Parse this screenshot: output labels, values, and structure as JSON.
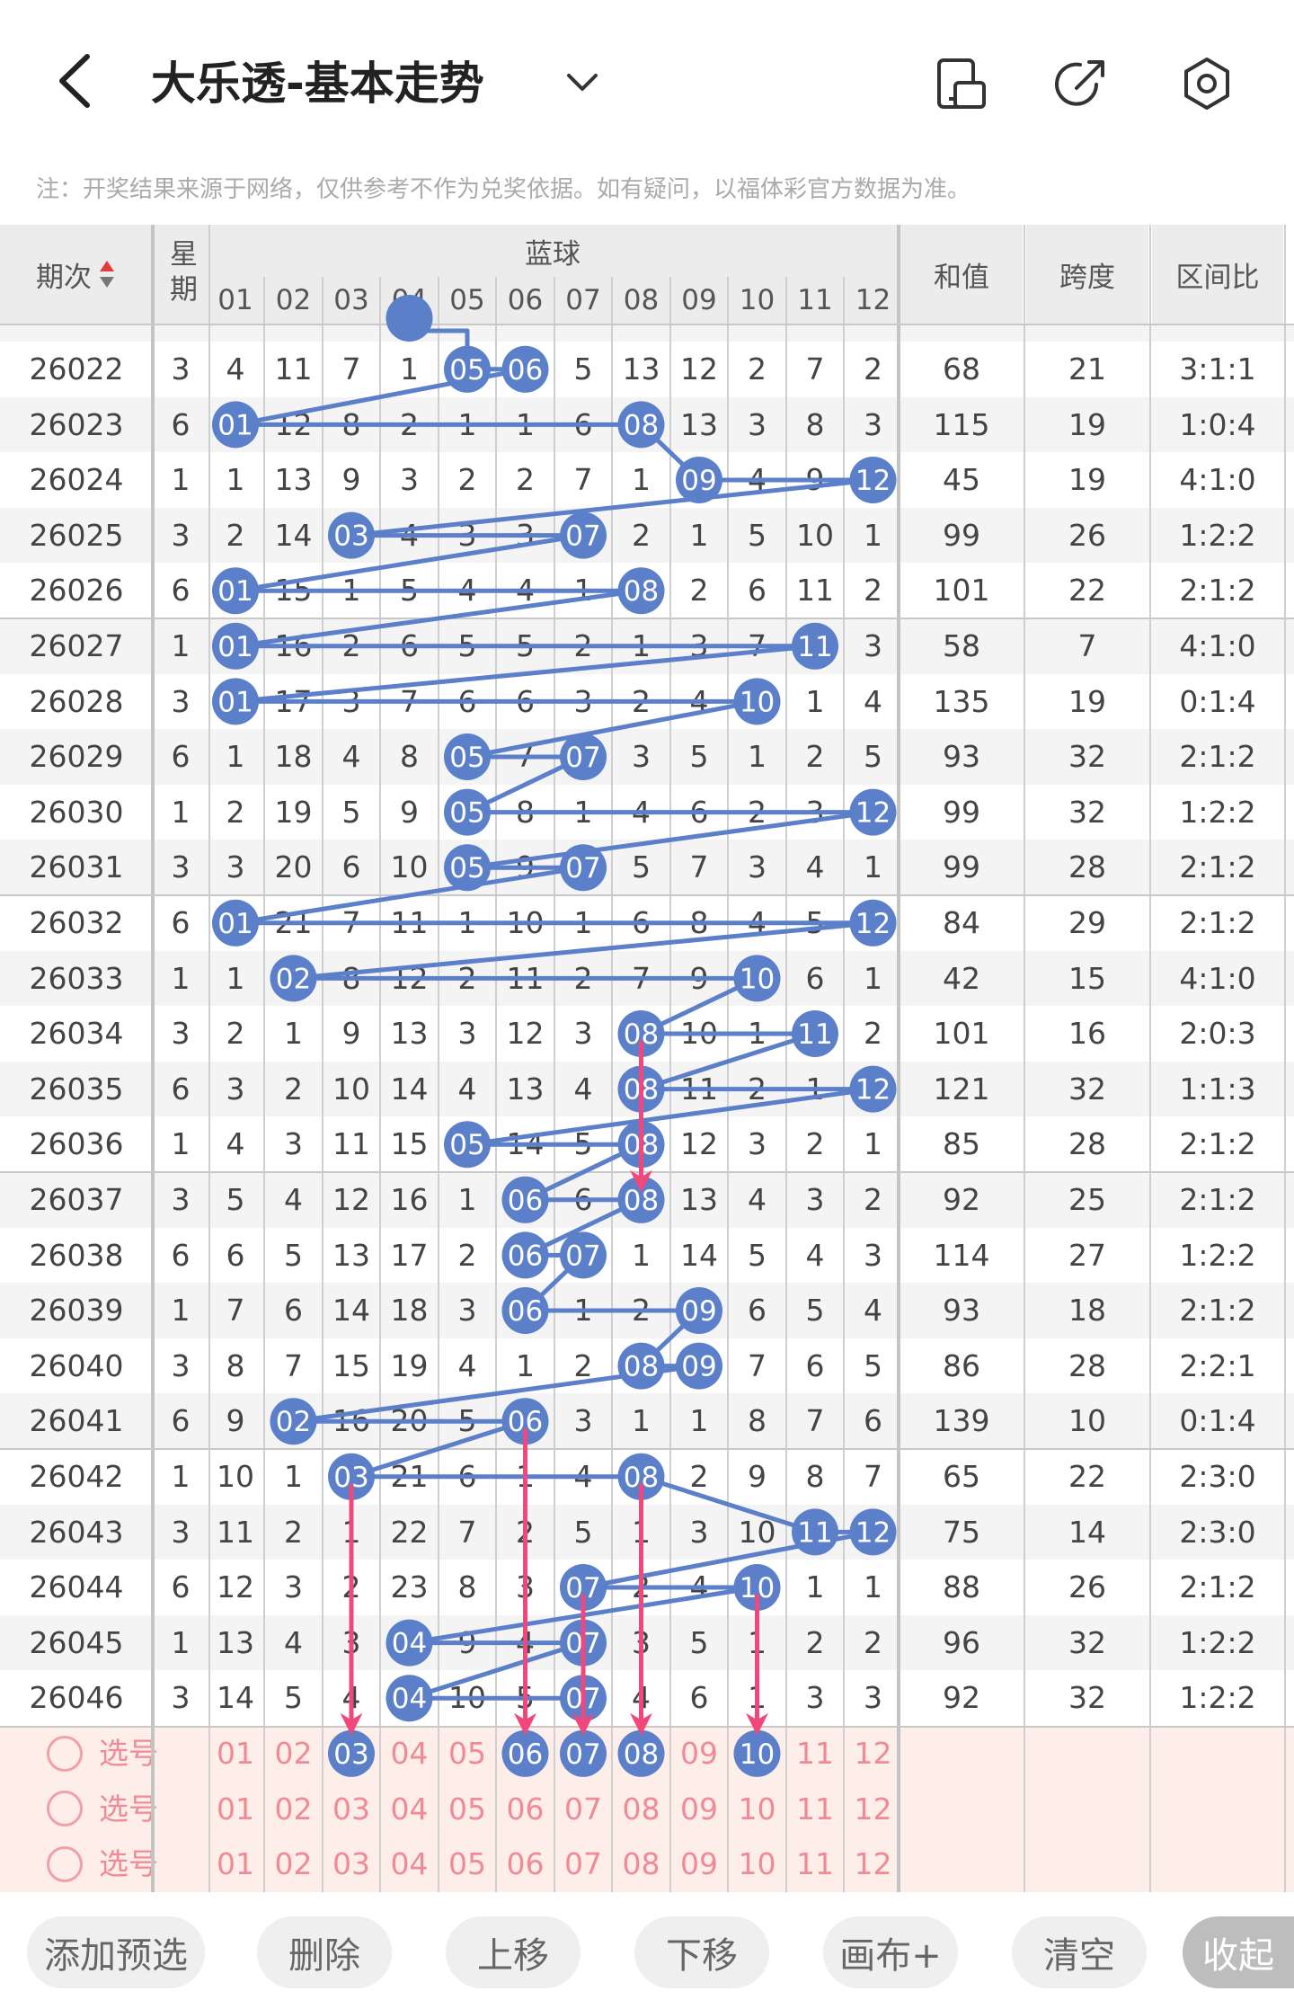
{
  "header": {
    "title": "大乐透-基本走势",
    "icons": [
      "back-arrow-icon",
      "chevron-down-icon",
      "phone-landscape-icon",
      "share-icon",
      "settings-gear-icon"
    ]
  },
  "notice": "注：开奖结果来源于网络，仅供参考不作为兑奖依据。如有疑问，以福体彩官方数据为准。",
  "table": {
    "headers": {
      "period": "期次",
      "weekday": "星期",
      "blue_group": "蓝球",
      "sum": "和值",
      "span": "跨度",
      "ratio": "区间比"
    },
    "numbers": [
      "01",
      "02",
      "03",
      "04",
      "05",
      "06",
      "07",
      "08",
      "09",
      "10",
      "11",
      "12"
    ],
    "rows": [
      {
        "period": "26022",
        "weekday": "3",
        "cells": [
          "4",
          "11",
          "7",
          "1",
          "05",
          "06",
          "5",
          "13",
          "12",
          "2",
          "7",
          "2"
        ],
        "sum": "68",
        "span": "21",
        "ratio": "3:1:1",
        "hits": [
          5,
          6
        ]
      },
      {
        "period": "26023",
        "weekday": "6",
        "cells": [
          "01",
          "12",
          "8",
          "2",
          "1",
          "1",
          "6",
          "08",
          "13",
          "3",
          "8",
          "3"
        ],
        "sum": "115",
        "span": "19",
        "ratio": "1:0:4",
        "hits": [
          1,
          8
        ]
      },
      {
        "period": "26024",
        "weekday": "1",
        "cells": [
          "1",
          "13",
          "9",
          "3",
          "2",
          "2",
          "7",
          "1",
          "09",
          "4",
          "9",
          "12"
        ],
        "sum": "45",
        "span": "19",
        "ratio": "4:1:0",
        "hits": [
          9,
          12
        ]
      },
      {
        "period": "26025",
        "weekday": "3",
        "cells": [
          "2",
          "14",
          "03",
          "4",
          "3",
          "3",
          "07",
          "2",
          "1",
          "5",
          "10",
          "1"
        ],
        "sum": "99",
        "span": "26",
        "ratio": "1:2:2",
        "hits": [
          3,
          7
        ]
      },
      {
        "period": "26026",
        "weekday": "6",
        "cells": [
          "01",
          "15",
          "1",
          "5",
          "4",
          "4",
          "1",
          "08",
          "2",
          "6",
          "11",
          "2"
        ],
        "sum": "101",
        "span": "22",
        "ratio": "2:1:2",
        "hits": [
          1,
          8
        ]
      },
      {
        "period": "26027",
        "weekday": "1",
        "cells": [
          "01",
          "16",
          "2",
          "6",
          "5",
          "5",
          "2",
          "1",
          "3",
          "7",
          "11",
          "3"
        ],
        "sum": "58",
        "span": "7",
        "ratio": "4:1:0",
        "hits": [
          1,
          11
        ]
      },
      {
        "period": "26028",
        "weekday": "3",
        "cells": [
          "01",
          "17",
          "3",
          "7",
          "6",
          "6",
          "3",
          "2",
          "4",
          "10",
          "1",
          "4"
        ],
        "sum": "135",
        "span": "19",
        "ratio": "0:1:4",
        "hits": [
          1,
          10
        ]
      },
      {
        "period": "26029",
        "weekday": "6",
        "cells": [
          "1",
          "18",
          "4",
          "8",
          "05",
          "7",
          "07",
          "3",
          "5",
          "1",
          "2",
          "5"
        ],
        "sum": "93",
        "span": "32",
        "ratio": "2:1:2",
        "hits": [
          5,
          7
        ]
      },
      {
        "period": "26030",
        "weekday": "1",
        "cells": [
          "2",
          "19",
          "5",
          "9",
          "05",
          "8",
          "1",
          "4",
          "6",
          "2",
          "3",
          "12"
        ],
        "sum": "99",
        "span": "32",
        "ratio": "1:2:2",
        "hits": [
          5,
          12
        ]
      },
      {
        "period": "26031",
        "weekday": "3",
        "cells": [
          "3",
          "20",
          "6",
          "10",
          "05",
          "9",
          "07",
          "5",
          "7",
          "3",
          "4",
          "1"
        ],
        "sum": "99",
        "span": "28",
        "ratio": "2:1:2",
        "hits": [
          5,
          7
        ]
      },
      {
        "period": "26032",
        "weekday": "6",
        "cells": [
          "01",
          "21",
          "7",
          "11",
          "1",
          "10",
          "1",
          "6",
          "8",
          "4",
          "5",
          "12"
        ],
        "sum": "84",
        "span": "29",
        "ratio": "2:1:2",
        "hits": [
          1,
          12
        ]
      },
      {
        "period": "26033",
        "weekday": "1",
        "cells": [
          "1",
          "02",
          "8",
          "12",
          "2",
          "11",
          "2",
          "7",
          "9",
          "10",
          "6",
          "1"
        ],
        "sum": "42",
        "span": "15",
        "ratio": "4:1:0",
        "hits": [
          2,
          10
        ]
      },
      {
        "period": "26034",
        "weekday": "3",
        "cells": [
          "2",
          "1",
          "9",
          "13",
          "3",
          "12",
          "3",
          "08",
          "10",
          "1",
          "11",
          "2"
        ],
        "sum": "101",
        "span": "16",
        "ratio": "2:0:3",
        "hits": [
          8,
          11
        ]
      },
      {
        "period": "26035",
        "weekday": "6",
        "cells": [
          "3",
          "2",
          "10",
          "14",
          "4",
          "13",
          "4",
          "08",
          "11",
          "2",
          "1",
          "12"
        ],
        "sum": "121",
        "span": "32",
        "ratio": "1:1:3",
        "hits": [
          8,
          12
        ]
      },
      {
        "period": "26036",
        "weekday": "1",
        "cells": [
          "4",
          "3",
          "11",
          "15",
          "05",
          "14",
          "5",
          "08",
          "12",
          "3",
          "2",
          "1"
        ],
        "sum": "85",
        "span": "28",
        "ratio": "2:1:2",
        "hits": [
          5,
          8
        ]
      },
      {
        "period": "26037",
        "weekday": "3",
        "cells": [
          "5",
          "4",
          "12",
          "16",
          "1",
          "06",
          "6",
          "08",
          "13",
          "4",
          "3",
          "2"
        ],
        "sum": "92",
        "span": "25",
        "ratio": "2:1:2",
        "hits": [
          6,
          8
        ]
      },
      {
        "period": "26038",
        "weekday": "6",
        "cells": [
          "6",
          "5",
          "13",
          "17",
          "2",
          "06",
          "07",
          "1",
          "14",
          "5",
          "4",
          "3"
        ],
        "sum": "114",
        "span": "27",
        "ratio": "1:2:2",
        "hits": [
          6,
          7
        ]
      },
      {
        "period": "26039",
        "weekday": "1",
        "cells": [
          "7",
          "6",
          "14",
          "18",
          "3",
          "06",
          "1",
          "2",
          "09",
          "6",
          "5",
          "4"
        ],
        "sum": "93",
        "span": "18",
        "ratio": "2:1:2",
        "hits": [
          6,
          9
        ]
      },
      {
        "period": "26040",
        "weekday": "3",
        "cells": [
          "8",
          "7",
          "15",
          "19",
          "4",
          "1",
          "2",
          "08",
          "09",
          "7",
          "6",
          "5"
        ],
        "sum": "86",
        "span": "28",
        "ratio": "2:2:1",
        "hits": [
          8,
          9
        ]
      },
      {
        "period": "26041",
        "weekday": "6",
        "cells": [
          "9",
          "02",
          "16",
          "20",
          "5",
          "06",
          "3",
          "1",
          "1",
          "8",
          "7",
          "6"
        ],
        "sum": "139",
        "span": "10",
        "ratio": "0:1:4",
        "hits": [
          2,
          6
        ]
      },
      {
        "period": "26042",
        "weekday": "1",
        "cells": [
          "10",
          "1",
          "03",
          "21",
          "6",
          "1",
          "4",
          "08",
          "2",
          "9",
          "8",
          "7"
        ],
        "sum": "65",
        "span": "22",
        "ratio": "2:3:0",
        "hits": [
          3,
          8
        ]
      },
      {
        "period": "26043",
        "weekday": "3",
        "cells": [
          "11",
          "2",
          "1",
          "22",
          "7",
          "2",
          "5",
          "1",
          "3",
          "10",
          "11",
          "12"
        ],
        "sum": "75",
        "span": "14",
        "ratio": "2:3:0",
        "hits": [
          11,
          12
        ]
      },
      {
        "period": "26044",
        "weekday": "6",
        "cells": [
          "12",
          "3",
          "2",
          "23",
          "8",
          "3",
          "07",
          "2",
          "4",
          "10",
          "1",
          "1"
        ],
        "sum": "88",
        "span": "26",
        "ratio": "2:1:2",
        "hits": [
          7,
          10
        ]
      },
      {
        "period": "26045",
        "weekday": "1",
        "cells": [
          "13",
          "4",
          "3",
          "04",
          "9",
          "4",
          "07",
          "3",
          "5",
          "1",
          "2",
          "2"
        ],
        "sum": "96",
        "span": "32",
        "ratio": "1:2:2",
        "hits": [
          4,
          7
        ]
      },
      {
        "period": "26046",
        "weekday": "3",
        "cells": [
          "14",
          "5",
          "4",
          "04",
          "10",
          "5",
          "07",
          "4",
          "6",
          "1",
          "3",
          "3"
        ],
        "sum": "92",
        "span": "32",
        "ratio": "1:2:2",
        "hits": [
          4,
          7
        ]
      }
    ]
  },
  "selection": {
    "label": "选号",
    "rows": [
      {
        "selected": [
          3,
          6,
          7,
          8,
          10
        ]
      },
      {
        "selected": []
      },
      {
        "selected": []
      }
    ]
  },
  "arrows": [
    {
      "column": 3,
      "from_period": "26042"
    },
    {
      "column": 6,
      "from_period": "26041"
    },
    {
      "column": 7,
      "from_period": "26044"
    },
    {
      "column": 8,
      "from_period": "26042"
    },
    {
      "column": 8,
      "from_period": "26034"
    },
    {
      "column": 10,
      "from_period": "26044"
    }
  ],
  "toolbar": {
    "buttons": [
      "添加预选",
      "删除",
      "上移",
      "下移",
      "画布+",
      "清空",
      "收起"
    ]
  },
  "colors": {
    "ball": "#5b7fc9",
    "trend_line": "#5b7fc9",
    "arrow": "#f0477d",
    "selection_bg": "#fdeee9",
    "selection_text": "#f08a94",
    "header_bg": "#ececec"
  }
}
